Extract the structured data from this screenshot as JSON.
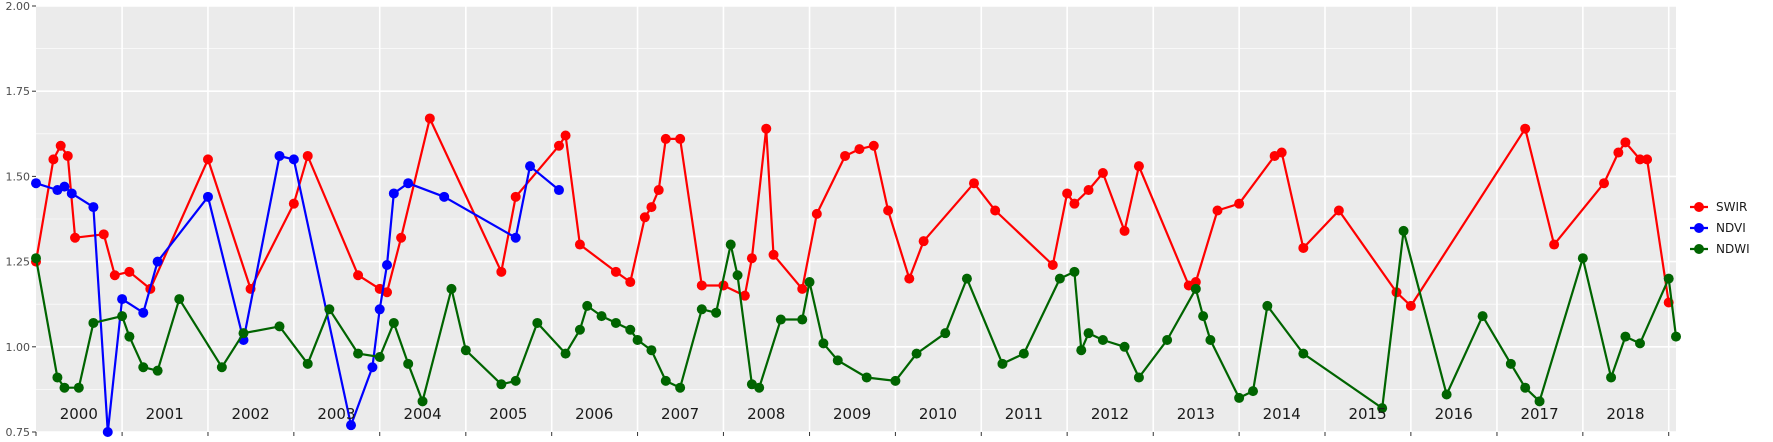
{
  "chart_data": {
    "type": "line",
    "title": "",
    "xlabel": "",
    "ylabel": "",
    "ylim": [
      0.75,
      2.0
    ],
    "y_ticks": [
      "0.75",
      "1.00",
      "1.25",
      "1.50",
      "1.75",
      "2.00"
    ],
    "x_range": [
      "2000-01-01",
      "2019-02-01"
    ],
    "x_year_labels": [
      "2000",
      "2001",
      "2002",
      "2003",
      "2004",
      "2005",
      "2006",
      "2007",
      "2008",
      "2009",
      "2010",
      "2011",
      "2012",
      "2013",
      "2014",
      "2015",
      "2016",
      "2017",
      "2018"
    ],
    "grid": true,
    "background": "#ebebeb",
    "legend_position": "right",
    "series": [
      {
        "name": "SWIR",
        "color": "#ff0000",
        "points": [
          [
            "2000-01-01",
            1.25
          ],
          [
            "2000-03-15",
            1.55
          ],
          [
            "2000-04-15",
            1.59
          ],
          [
            "2000-05-15",
            1.56
          ],
          [
            "2000-06-15",
            1.32
          ],
          [
            "2000-10-15",
            1.33
          ],
          [
            "2000-12-01",
            1.21
          ],
          [
            "2001-02-01",
            1.22
          ],
          [
            "2001-05-01",
            1.17
          ],
          [
            "2002-01-01",
            1.55
          ],
          [
            "2002-07-01",
            1.17
          ],
          [
            "2003-01-01",
            1.42
          ],
          [
            "2003-03-01",
            1.56
          ],
          [
            "2003-10-01",
            1.21
          ],
          [
            "2004-01-01",
            1.17
          ],
          [
            "2004-02-01",
            1.16
          ],
          [
            "2004-04-01",
            1.32
          ],
          [
            "2004-08-01",
            1.67
          ],
          [
            "2005-06-01",
            1.22
          ],
          [
            "2005-08-01",
            1.44
          ],
          [
            "2006-02-01",
            1.59
          ],
          [
            "2006-03-01",
            1.62
          ],
          [
            "2006-05-01",
            1.3
          ],
          [
            "2006-10-01",
            1.22
          ],
          [
            "2006-12-01",
            1.19
          ],
          [
            "2007-02-01",
            1.38
          ],
          [
            "2007-03-01",
            1.41
          ],
          [
            "2007-04-01",
            1.46
          ],
          [
            "2007-05-01",
            1.61
          ],
          [
            "2007-07-01",
            1.61
          ],
          [
            "2007-10-01",
            1.18
          ],
          [
            "2008-01-01",
            1.18
          ],
          [
            "2008-04-01",
            1.15
          ],
          [
            "2008-05-01",
            1.26
          ],
          [
            "2008-07-01",
            1.64
          ],
          [
            "2008-08-01",
            1.27
          ],
          [
            "2008-12-01",
            1.17
          ],
          [
            "2009-02-01",
            1.39
          ],
          [
            "2009-06-01",
            1.56
          ],
          [
            "2009-08-01",
            1.58
          ],
          [
            "2009-10-01",
            1.59
          ],
          [
            "2009-12-01",
            1.4
          ],
          [
            "2010-03-01",
            1.2
          ],
          [
            "2010-05-01",
            1.31
          ],
          [
            "2010-12-01",
            1.48
          ],
          [
            "2011-03-01",
            1.4
          ],
          [
            "2011-11-01",
            1.24
          ],
          [
            "2012-01-01",
            1.45
          ],
          [
            "2012-02-01",
            1.42
          ],
          [
            "2012-04-01",
            1.46
          ],
          [
            "2012-06-01",
            1.51
          ],
          [
            "2012-09-01",
            1.34
          ],
          [
            "2012-11-01",
            1.53
          ],
          [
            "2013-06-01",
            1.18
          ],
          [
            "2013-07-01",
            1.19
          ],
          [
            "2013-10-01",
            1.4
          ],
          [
            "2014-01-01",
            1.42
          ],
          [
            "2014-06-01",
            1.56
          ],
          [
            "2014-07-01",
            1.57
          ],
          [
            "2014-10-01",
            1.29
          ],
          [
            "2015-03-01",
            1.4
          ],
          [
            "2015-11-01",
            1.16
          ],
          [
            "2016-01-01",
            1.12
          ],
          [
            "2017-05-01",
            1.64
          ],
          [
            "2017-09-01",
            1.3
          ],
          [
            "2018-04-01",
            1.48
          ],
          [
            "2018-06-01",
            1.57
          ],
          [
            "2018-07-01",
            1.6
          ],
          [
            "2018-09-01",
            1.55
          ],
          [
            "2018-10-01",
            1.55
          ],
          [
            "2019-01-01",
            1.13
          ]
        ]
      },
      {
        "name": "NDVI",
        "color": "#0000ff",
        "points": [
          [
            "2000-01-01",
            1.48
          ],
          [
            "2000-04-01",
            1.46
          ],
          [
            "2000-05-01",
            1.47
          ],
          [
            "2000-06-01",
            1.45
          ],
          [
            "2000-09-01",
            1.41
          ],
          [
            "2000-11-01",
            0.75
          ],
          [
            "2001-01-01",
            1.14
          ],
          [
            "2001-04-01",
            1.1
          ],
          [
            "2001-06-01",
            1.25
          ],
          [
            "2002-01-01",
            1.44
          ],
          [
            "2002-06-01",
            1.02
          ],
          [
            "2002-11-01",
            1.56
          ],
          [
            "2003-01-01",
            1.55
          ],
          [
            "2003-09-01",
            0.77
          ],
          [
            "2003-12-01",
            0.94
          ],
          [
            "2004-01-01",
            1.11
          ],
          [
            "2004-02-01",
            1.24
          ],
          [
            "2004-03-01",
            1.45
          ],
          [
            "2004-05-01",
            1.48
          ],
          [
            "2004-10-01",
            1.44
          ],
          [
            "2005-08-01",
            1.32
          ],
          [
            "2005-10-01",
            1.53
          ],
          [
            "2006-02-01",
            1.46
          ]
        ]
      },
      {
        "name": "NDWI",
        "color": "#006400",
        "points": [
          [
            "2000-01-01",
            1.26
          ],
          [
            "2000-04-01",
            0.91
          ],
          [
            "2000-05-01",
            0.88
          ],
          [
            "2000-07-01",
            0.88
          ],
          [
            "2000-09-01",
            1.07
          ],
          [
            "2001-01-01",
            1.09
          ],
          [
            "2001-02-01",
            1.03
          ],
          [
            "2001-04-01",
            0.94
          ],
          [
            "2001-06-01",
            0.93
          ],
          [
            "2001-09-01",
            1.14
          ],
          [
            "2002-03-01",
            0.94
          ],
          [
            "2002-06-01",
            1.04
          ],
          [
            "2002-11-01",
            1.06
          ],
          [
            "2003-03-01",
            0.95
          ],
          [
            "2003-06-01",
            1.11
          ],
          [
            "2003-10-01",
            0.98
          ],
          [
            "2004-01-01",
            0.97
          ],
          [
            "2004-03-01",
            1.07
          ],
          [
            "2004-05-01",
            0.95
          ],
          [
            "2004-07-01",
            0.84
          ],
          [
            "2004-11-01",
            1.17
          ],
          [
            "2005-01-01",
            0.99
          ],
          [
            "2005-06-01",
            0.89
          ],
          [
            "2005-08-01",
            0.9
          ],
          [
            "2005-11-01",
            1.07
          ],
          [
            "2006-03-01",
            0.98
          ],
          [
            "2006-05-01",
            1.05
          ],
          [
            "2006-06-01",
            1.12
          ],
          [
            "2006-08-01",
            1.09
          ],
          [
            "2006-10-01",
            1.07
          ],
          [
            "2006-12-01",
            1.05
          ],
          [
            "2007-01-01",
            1.02
          ],
          [
            "2007-03-01",
            0.99
          ],
          [
            "2007-05-01",
            0.9
          ],
          [
            "2007-07-01",
            0.88
          ],
          [
            "2007-10-01",
            1.11
          ],
          [
            "2007-12-01",
            1.1
          ],
          [
            "2008-02-01",
            1.3
          ],
          [
            "2008-03-01",
            1.21
          ],
          [
            "2008-05-01",
            0.89
          ],
          [
            "2008-06-01",
            0.88
          ],
          [
            "2008-09-01",
            1.08
          ],
          [
            "2008-12-01",
            1.08
          ],
          [
            "2009-01-01",
            1.19
          ],
          [
            "2009-03-01",
            1.01
          ],
          [
            "2009-05-01",
            0.96
          ],
          [
            "2009-09-01",
            0.91
          ],
          [
            "2010-01-01",
            0.9
          ],
          [
            "2010-04-01",
            0.98
          ],
          [
            "2010-08-01",
            1.04
          ],
          [
            "2010-11-01",
            1.2
          ],
          [
            "2011-04-01",
            0.95
          ],
          [
            "2011-07-01",
            0.98
          ],
          [
            "2011-12-01",
            1.2
          ],
          [
            "2012-02-01",
            1.22
          ],
          [
            "2012-03-01",
            0.99
          ],
          [
            "2012-04-01",
            1.04
          ],
          [
            "2012-06-01",
            1.02
          ],
          [
            "2012-09-01",
            1.0
          ],
          [
            "2012-11-01",
            0.91
          ],
          [
            "2013-03-01",
            1.02
          ],
          [
            "2013-07-01",
            1.17
          ],
          [
            "2013-08-01",
            1.09
          ],
          [
            "2013-09-01",
            1.02
          ],
          [
            "2014-01-01",
            0.85
          ],
          [
            "2014-03-01",
            0.87
          ],
          [
            "2014-05-01",
            1.12
          ],
          [
            "2014-10-01",
            0.98
          ],
          [
            "2015-09-01",
            0.82
          ],
          [
            "2015-12-01",
            1.34
          ],
          [
            "2016-06-01",
            0.86
          ],
          [
            "2016-11-01",
            1.09
          ],
          [
            "2017-03-01",
            0.95
          ],
          [
            "2017-05-01",
            0.88
          ],
          [
            "2017-07-01",
            0.84
          ],
          [
            "2018-01-01",
            1.26
          ],
          [
            "2018-05-01",
            0.91
          ],
          [
            "2018-07-01",
            1.03
          ],
          [
            "2018-09-01",
            1.01
          ],
          [
            "2019-01-01",
            1.2
          ],
          [
            "2019-02-01",
            1.03
          ]
        ]
      }
    ]
  }
}
